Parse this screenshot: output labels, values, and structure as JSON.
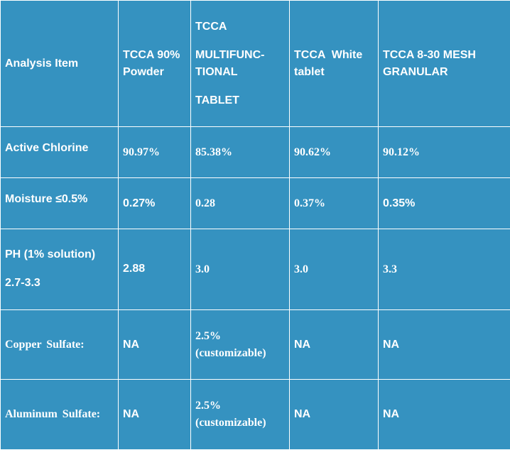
{
  "table": {
    "header": {
      "analysis_item": "Analysis Item",
      "col1": [
        "TCCA 90%",
        "Powder"
      ],
      "col2": [
        "TCCA",
        "MULTIFUNC-",
        "TIONAL",
        "TABLET"
      ],
      "col3": [
        "TCCA  White",
        "tablet"
      ],
      "col4": [
        "TCCA 8-30 MESH",
        "GRANULAR"
      ]
    },
    "rows": [
      {
        "label": "Active Chlorine",
        "values": [
          "90.97%",
          "85.38%",
          "90.62%",
          "90.12%"
        ]
      },
      {
        "label": "Moisture ≤0.5%",
        "values": [
          "0.27%",
          "0.28",
          "0.37%",
          "0.35%"
        ]
      },
      {
        "label_lines": [
          "PH (1% solution)",
          "2.7-3.3"
        ],
        "values": [
          "2.88",
          "3.0",
          "3.0",
          "3.3"
        ]
      },
      {
        "label": "Copper Sulfate:",
        "values": [
          "NA",
          "2.5%",
          "NA",
          "NA"
        ],
        "extra": "(customizable)"
      },
      {
        "label": "Aluminum Sulfate:",
        "values": [
          "NA",
          "2.5%",
          "NA",
          "NA"
        ],
        "extra": "(customizable)"
      }
    ]
  }
}
